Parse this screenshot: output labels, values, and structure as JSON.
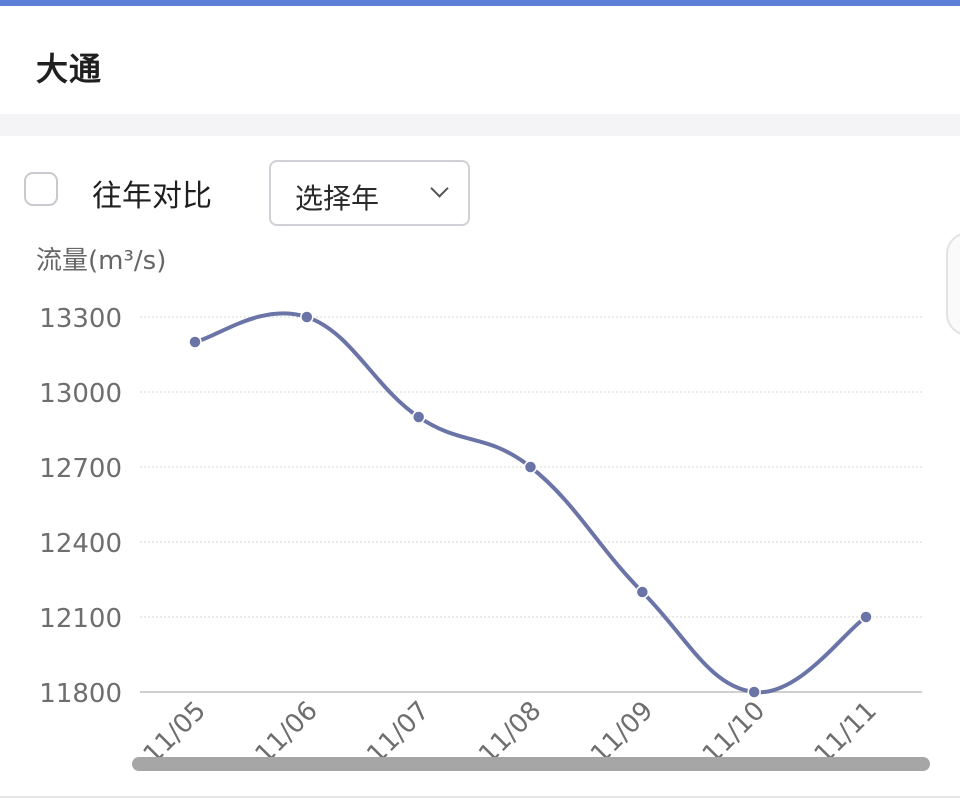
{
  "header": {
    "title": "大通"
  },
  "controls": {
    "compare_label": "往年对比",
    "compare_checked": false,
    "year_select": {
      "value": "选择年"
    }
  },
  "colors": {
    "accent": "#5b7fd6",
    "series": "#6b74a6"
  },
  "chart_data": {
    "type": "line",
    "ylabel": "流量(m³/s)",
    "categories": [
      "11/05",
      "11/06",
      "11/07",
      "11/08",
      "11/09",
      "11/10",
      "11/11"
    ],
    "series": [
      {
        "values": [
          13200,
          13300,
          12900,
          12700,
          12200,
          11800,
          12100
        ]
      }
    ],
    "yticks": [
      13300,
      13000,
      12700,
      12400,
      12100,
      11800
    ],
    "ylim": [
      11800,
      13300
    ],
    "grid": true,
    "smooth": true
  }
}
